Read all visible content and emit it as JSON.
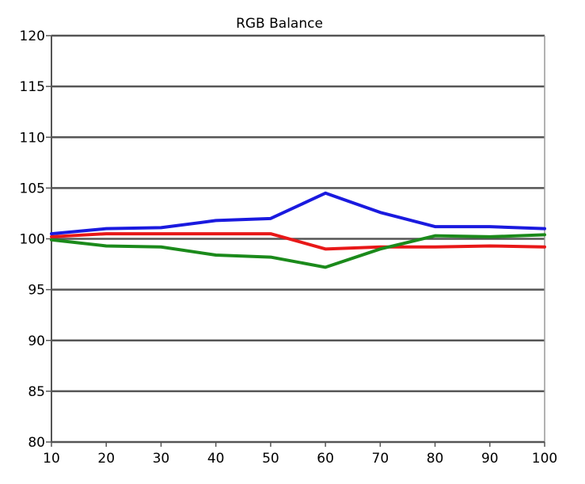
{
  "chart_data": {
    "type": "line",
    "title": "RGB Balance",
    "xlabel": "",
    "ylabel": "",
    "xlim": [
      10,
      100
    ],
    "ylim": [
      80,
      120
    ],
    "x": [
      10,
      20,
      30,
      40,
      50,
      60,
      70,
      80,
      90,
      100
    ],
    "x_ticks": [
      "10",
      "20",
      "30",
      "40",
      "50",
      "60",
      "70",
      "80",
      "90",
      "100"
    ],
    "y_ticks": [
      "80",
      "85",
      "90",
      "95",
      "100",
      "105",
      "110",
      "115",
      "120"
    ],
    "grid": "horizontal",
    "series": [
      {
        "color": "#1a1adf",
        "values": [
          100.5,
          101.0,
          101.1,
          101.8,
          102.0,
          104.5,
          102.6,
          101.2,
          101.2,
          101.0
        ]
      },
      {
        "color": "#e81818",
        "values": [
          100.2,
          100.5,
          100.5,
          100.5,
          100.5,
          99.0,
          99.2,
          99.2,
          99.3,
          99.2
        ]
      },
      {
        "color": "#1b8a1b",
        "values": [
          99.9,
          99.3,
          99.2,
          98.4,
          98.2,
          97.2,
          99.0,
          100.3,
          100.2,
          100.4
        ]
      }
    ]
  }
}
